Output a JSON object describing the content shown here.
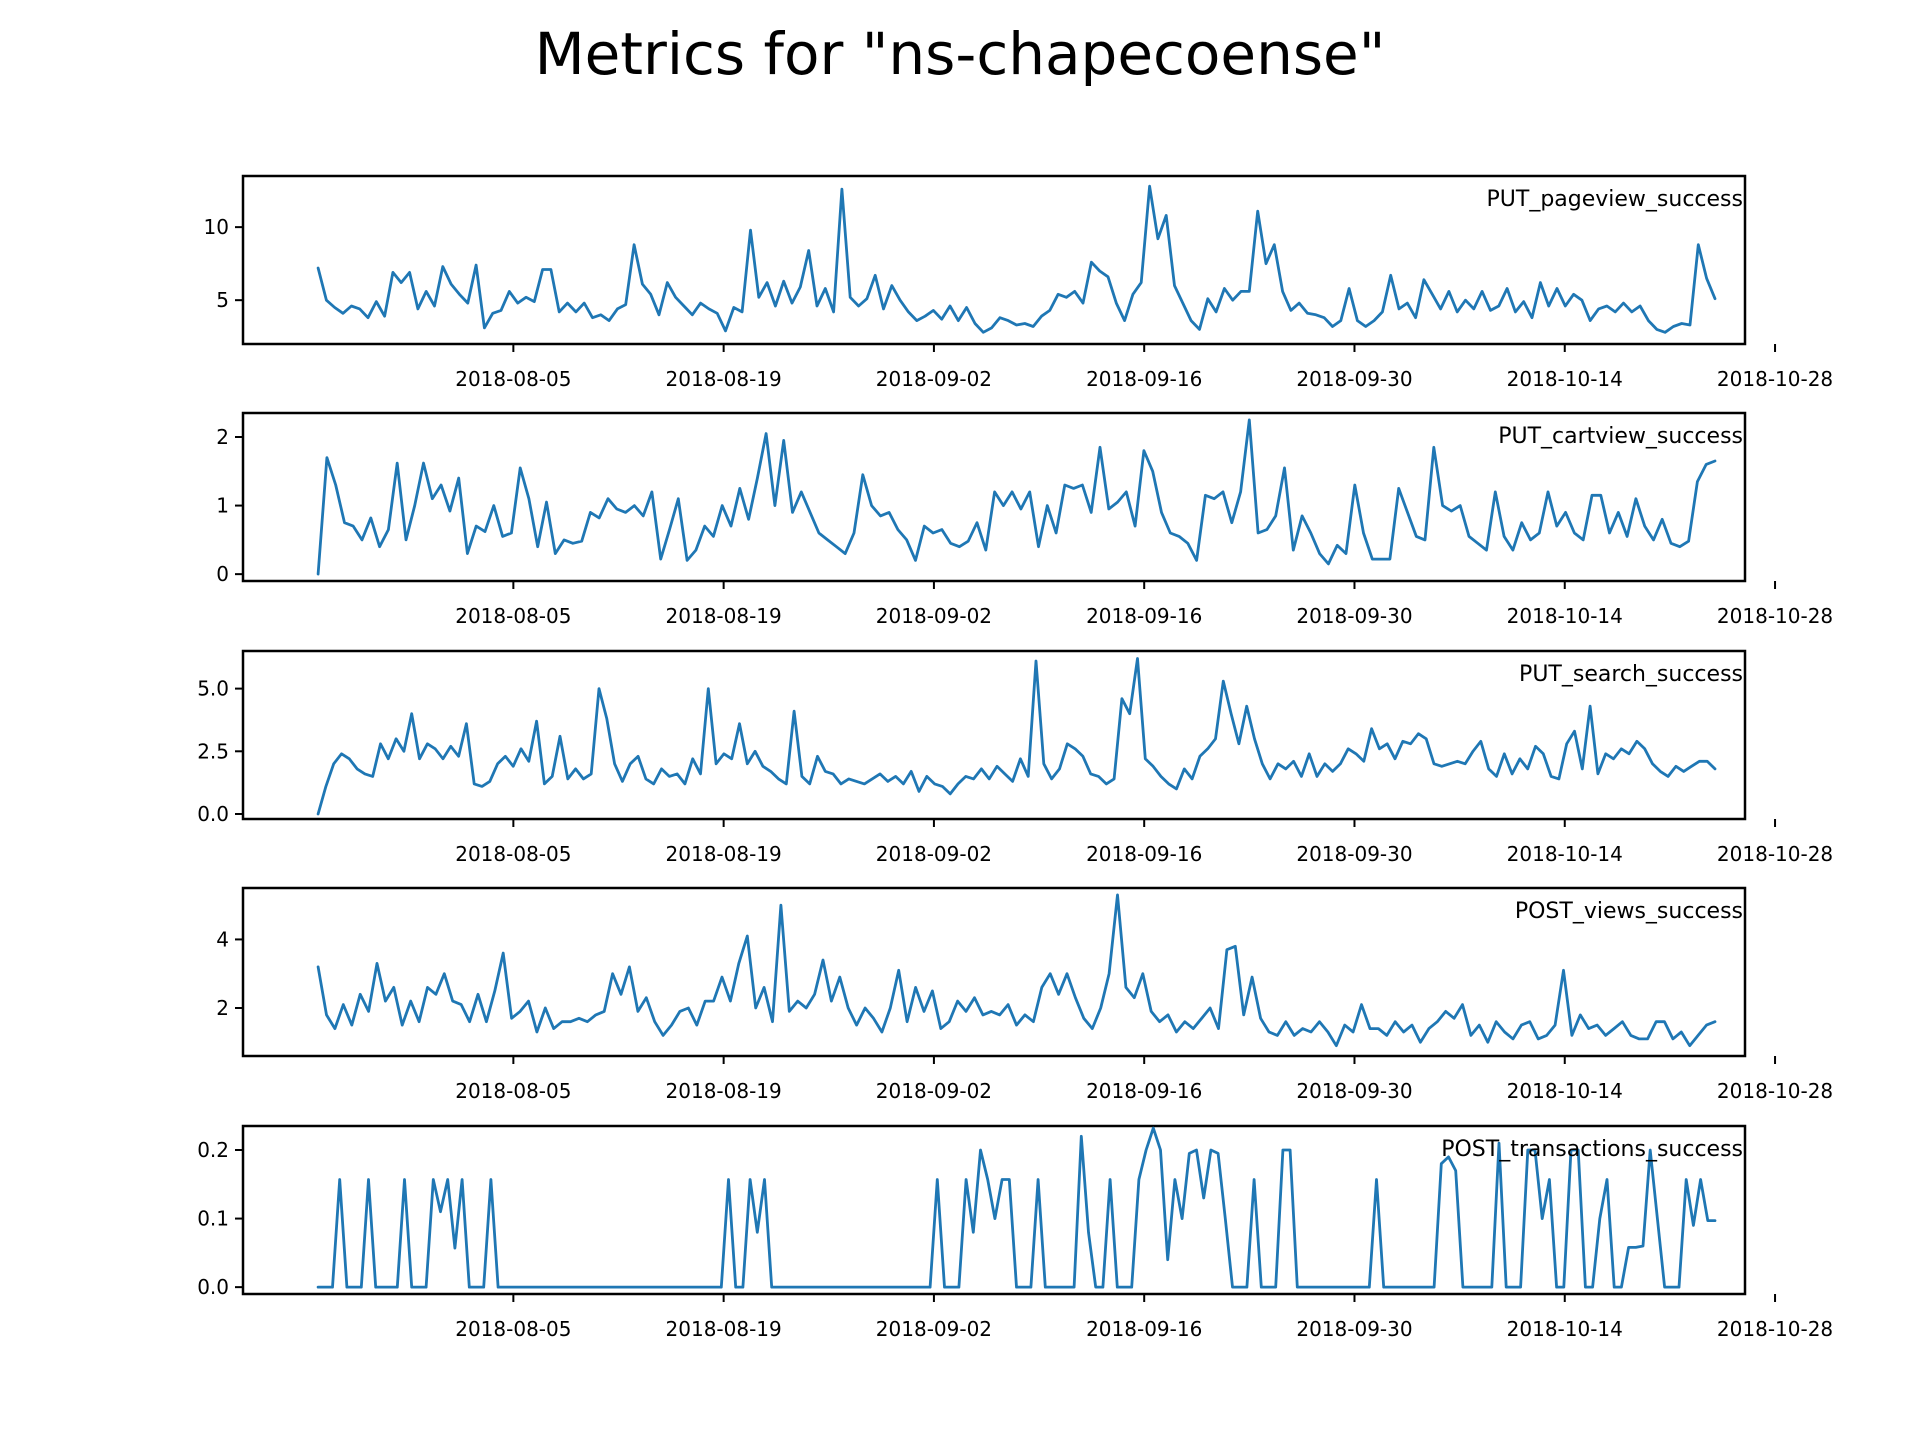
{
  "title": "Metrics for \"ns-chapecoense\"",
  "colors": {
    "line": "#1f77b4",
    "axes": "#000000",
    "background": "#ffffff"
  },
  "chart_data": [
    {
      "type": "line",
      "label": "PUT_pageview_success",
      "ylim": [
        2,
        13.5
      ],
      "yticks": [
        5,
        10
      ],
      "ytick_labels": [
        "5",
        "10"
      ],
      "x_start": "2018-07-23",
      "x_end": "2018-10-24",
      "xlim": [
        "2018-07-18",
        "2018-10-26"
      ],
      "xticks": [
        "2018-08-05",
        "2018-08-19",
        "2018-09-02",
        "2018-09-16",
        "2018-09-30",
        "2018-10-14",
        "2018-10-28"
      ],
      "values": [
        7.2,
        5,
        4.5,
        4.1,
        4.6,
        4.4,
        3.8,
        4.9,
        3.9,
        6.9,
        6.2,
        6.9,
        4.4,
        5.6,
        4.6,
        7.3,
        6.1,
        5.4,
        4.8,
        7.4,
        3.1,
        4.1,
        4.3,
        5.6,
        4.8,
        5.2,
        4.9,
        7.1,
        7.1,
        4.2,
        4.8,
        4.2,
        4.8,
        3.8,
        4.0,
        3.6,
        4.4,
        4.7,
        8.8,
        6.1,
        5.4,
        4.0,
        6.2,
        5.2,
        4.6,
        4.0,
        4.8,
        4.4,
        4.1,
        2.9,
        4.5,
        4.2,
        9.8,
        5.2,
        6.2,
        4.6,
        6.3,
        4.8,
        5.9,
        8.4,
        4.6,
        5.8,
        4.2,
        12.6,
        5.2,
        4.6,
        5.1,
        6.7,
        4.4,
        6.0,
        5.0,
        4.2,
        3.6,
        3.9,
        4.3,
        3.7,
        4.6,
        3.6,
        4.5,
        3.4,
        2.8,
        3.1,
        3.8,
        3.6,
        3.3,
        3.4,
        3.2,
        3.9,
        4.3,
        5.4,
        5.2,
        5.6,
        4.8,
        7.6,
        7.0,
        6.6,
        4.8,
        3.6,
        5.4,
        6.2,
        12.8,
        9.2,
        10.8,
        6.0,
        4.8,
        3.6,
        3.0,
        5.1,
        4.2,
        5.8,
        5.0,
        5.6,
        5.6,
        11.1,
        7.5,
        8.8,
        5.6,
        4.3,
        4.8,
        4.1,
        4.0,
        3.8,
        3.2,
        3.6,
        5.8,
        3.6,
        3.2,
        3.6,
        4.2,
        6.7,
        4.4,
        4.8,
        3.8,
        6.4,
        5.4,
        4.4,
        5.6,
        4.2,
        5.0,
        4.4,
        5.6,
        4.3,
        4.6,
        5.8,
        4.2,
        4.9,
        3.8,
        6.2,
        4.6,
        5.8,
        4.6,
        5.4,
        5.0,
        3.6,
        4.4,
        4.6,
        4.2,
        4.8,
        4.2,
        4.6,
        3.6,
        3.0,
        2.8,
        3.2,
        3.4,
        3.3,
        8.8,
        6.5,
        5.1
      ]
    },
    {
      "type": "line",
      "label": "PUT_cartview_success",
      "ylim": [
        -0.1,
        2.35
      ],
      "yticks": [
        0,
        1,
        2
      ],
      "ytick_labels": [
        "0",
        "1",
        "2"
      ],
      "x_start": "2018-07-23",
      "x_end": "2018-10-24",
      "xlim": [
        "2018-07-18",
        "2018-10-26"
      ],
      "xticks": [
        "2018-08-05",
        "2018-08-19",
        "2018-09-02",
        "2018-09-16",
        "2018-09-30",
        "2018-10-14",
        "2018-10-28"
      ],
      "values": [
        0.0,
        1.7,
        1.3,
        0.75,
        0.7,
        0.5,
        0.82,
        0.4,
        0.65,
        1.62,
        0.5,
        1.0,
        1.62,
        1.1,
        1.3,
        0.92,
        1.4,
        0.3,
        0.7,
        0.62,
        1.0,
        0.55,
        0.6,
        1.55,
        1.1,
        0.4,
        1.05,
        0.3,
        0.5,
        0.45,
        0.48,
        0.9,
        0.82,
        1.1,
        0.95,
        0.9,
        1.0,
        0.85,
        1.2,
        0.22,
        0.65,
        1.1,
        0.2,
        0.35,
        0.7,
        0.55,
        1.0,
        0.7,
        1.25,
        0.8,
        1.4,
        2.05,
        1.0,
        1.95,
        0.9,
        1.2,
        0.9,
        0.6,
        0.5,
        0.4,
        0.3,
        0.6,
        1.45,
        1.0,
        0.85,
        0.9,
        0.65,
        0.5,
        0.2,
        0.7,
        0.6,
        0.65,
        0.45,
        0.4,
        0.48,
        0.75,
        0.35,
        1.2,
        1.0,
        1.2,
        0.95,
        1.2,
        0.4,
        1.0,
        0.6,
        1.3,
        1.25,
        1.3,
        0.9,
        1.85,
        0.95,
        1.05,
        1.2,
        0.7,
        1.8,
        1.5,
        0.9,
        0.6,
        0.55,
        0.45,
        0.2,
        1.15,
        1.1,
        1.2,
        0.75,
        1.2,
        2.25,
        0.6,
        0.65,
        0.85,
        1.55,
        0.35,
        0.85,
        0.6,
        0.3,
        0.15,
        0.42,
        0.3,
        1.3,
        0.6,
        0.22,
        0.22,
        0.22,
        1.25,
        0.9,
        0.55,
        0.5,
        1.85,
        1.0,
        0.92,
        1.0,
        0.55,
        0.45,
        0.35,
        1.2,
        0.55,
        0.35,
        0.75,
        0.5,
        0.6,
        1.2,
        0.7,
        0.9,
        0.6,
        0.5,
        1.15,
        1.15,
        0.6,
        0.9,
        0.55,
        1.1,
        0.7,
        0.5,
        0.8,
        0.45,
        0.4,
        0.48,
        1.35,
        1.6,
        1.65
      ]
    },
    {
      "type": "line",
      "label": "PUT_search_success",
      "ylim": [
        -0.2,
        6.5
      ],
      "yticks": [
        0.0,
        2.5,
        5.0
      ],
      "ytick_labels": [
        "0.0",
        "2.5",
        "5.0"
      ],
      "x_start": "2018-07-23",
      "x_end": "2018-10-24",
      "xlim": [
        "2018-07-18",
        "2018-10-26"
      ],
      "xticks": [
        "2018-08-05",
        "2018-08-19",
        "2018-09-02",
        "2018-09-16",
        "2018-09-30",
        "2018-10-14",
        "2018-10-28"
      ],
      "values": [
        0.0,
        1.1,
        2.0,
        2.4,
        2.2,
        1.8,
        1.6,
        1.5,
        2.8,
        2.2,
        3.0,
        2.5,
        4.0,
        2.2,
        2.8,
        2.6,
        2.2,
        2.7,
        2.3,
        3.6,
        1.2,
        1.1,
        1.3,
        2.0,
        2.3,
        1.9,
        2.6,
        2.1,
        3.7,
        1.2,
        1.5,
        3.1,
        1.4,
        1.8,
        1.4,
        1.6,
        5.0,
        3.8,
        2.0,
        1.3,
        2.0,
        2.3,
        1.4,
        1.2,
        1.8,
        1.5,
        1.6,
        1.2,
        2.2,
        1.6,
        5.0,
        2.0,
        2.4,
        2.2,
        3.6,
        2.0,
        2.5,
        1.9,
        1.7,
        1.4,
        1.2,
        4.1,
        1.5,
        1.2,
        2.3,
        1.7,
        1.6,
        1.2,
        1.4,
        1.3,
        1.2,
        1.4,
        1.6,
        1.3,
        1.5,
        1.2,
        1.7,
        0.9,
        1.5,
        1.2,
        1.1,
        0.8,
        1.2,
        1.5,
        1.4,
        1.8,
        1.4,
        1.9,
        1.6,
        1.3,
        2.2,
        1.5,
        6.1,
        2.0,
        1.4,
        1.8,
        2.8,
        2.6,
        2.3,
        1.6,
        1.5,
        1.2,
        1.4,
        4.6,
        4.0,
        6.2,
        2.2,
        1.9,
        1.5,
        1.2,
        1.0,
        1.8,
        1.4,
        2.3,
        2.6,
        3.0,
        5.3,
        4.0,
        2.8,
        4.3,
        3.0,
        2.0,
        1.4,
        2.0,
        1.8,
        2.1,
        1.5,
        2.4,
        1.5,
        2.0,
        1.7,
        2.0,
        2.6,
        2.4,
        2.1,
        3.4,
        2.6,
        2.8,
        2.2,
        2.9,
        2.8,
        3.2,
        3.0,
        2.0,
        1.9,
        2.0,
        2.1,
        2.0,
        2.5,
        2.9,
        1.8,
        1.5,
        2.4,
        1.6,
        2.2,
        1.8,
        2.7,
        2.4,
        1.5,
        1.4,
        2.8,
        3.3,
        1.8,
        4.3,
        1.6,
        2.4,
        2.2,
        2.6,
        2.4,
        2.9,
        2.6,
        2.0,
        1.7,
        1.5,
        1.9,
        1.7,
        1.9,
        2.1,
        2.1,
        1.8
      ]
    },
    {
      "type": "line",
      "label": "POST_views_success",
      "ylim": [
        0.6,
        5.5
      ],
      "yticks": [
        2,
        4
      ],
      "ytick_labels": [
        "2",
        "4"
      ],
      "x_start": "2018-07-23",
      "x_end": "2018-10-24",
      "xlim": [
        "2018-07-18",
        "2018-10-26"
      ],
      "xticks": [
        "2018-08-05",
        "2018-08-19",
        "2018-09-02",
        "2018-09-16",
        "2018-09-30",
        "2018-10-14",
        "2018-10-28"
      ],
      "values": [
        3.2,
        1.8,
        1.4,
        2.1,
        1.5,
        2.4,
        1.9,
        3.3,
        2.2,
        2.6,
        1.5,
        2.2,
        1.6,
        2.6,
        2.4,
        3.0,
        2.2,
        2.1,
        1.6,
        2.4,
        1.6,
        2.5,
        3.6,
        1.7,
        1.9,
        2.2,
        1.3,
        2.0,
        1.4,
        1.6,
        1.6,
        1.7,
        1.6,
        1.8,
        1.9,
        3.0,
        2.4,
        3.2,
        1.9,
        2.3,
        1.6,
        1.2,
        1.5,
        1.9,
        2.0,
        1.5,
        2.2,
        2.2,
        2.9,
        2.2,
        3.3,
        4.1,
        2.0,
        2.6,
        1.6,
        5.0,
        1.9,
        2.2,
        2.0,
        2.4,
        3.4,
        2.2,
        2.9,
        2.0,
        1.5,
        2.0,
        1.7,
        1.3,
        2.0,
        3.1,
        1.6,
        2.6,
        1.9,
        2.5,
        1.4,
        1.6,
        2.2,
        1.9,
        2.3,
        1.8,
        1.9,
        1.8,
        2.1,
        1.5,
        1.8,
        1.6,
        2.6,
        3.0,
        2.4,
        3.0,
        2.3,
        1.7,
        1.4,
        2.0,
        3.0,
        5.3,
        2.6,
        2.3,
        3.0,
        1.9,
        1.6,
        1.8,
        1.3,
        1.6,
        1.4,
        1.7,
        2.0,
        1.4,
        3.7,
        3.8,
        1.8,
        2.9,
        1.7,
        1.3,
        1.2,
        1.6,
        1.2,
        1.4,
        1.3,
        1.6,
        1.3,
        0.9,
        1.5,
        1.3,
        2.1,
        1.4,
        1.4,
        1.2,
        1.6,
        1.3,
        1.5,
        1.0,
        1.4,
        1.6,
        1.9,
        1.7,
        2.1,
        1.2,
        1.5,
        1.0,
        1.6,
        1.3,
        1.1,
        1.5,
        1.6,
        1.1,
        1.2,
        1.5,
        3.1,
        1.2,
        1.8,
        1.4,
        1.5,
        1.2,
        1.4,
        1.6,
        1.2,
        1.1,
        1.1,
        1.6,
        1.6,
        1.1,
        1.3,
        0.9,
        1.2,
        1.5,
        1.6
      ]
    },
    {
      "type": "line",
      "label": "POST_transactions_success",
      "ylim": [
        -0.01,
        0.235
      ],
      "yticks": [
        0.0,
        0.1,
        0.2
      ],
      "ytick_labels": [
        "0.0",
        "0.1",
        "0.2"
      ],
      "x_start": "2018-07-23",
      "x_end": "2018-10-24",
      "xlim": [
        "2018-07-18",
        "2018-10-26"
      ],
      "xticks": [
        "2018-08-05",
        "2018-08-19",
        "2018-09-02",
        "2018-09-16",
        "2018-09-30",
        "2018-10-14",
        "2018-10-28"
      ],
      "values": [
        0,
        0,
        0,
        0.157,
        0,
        0,
        0,
        0.157,
        0,
        0,
        0,
        0,
        0.157,
        0,
        0,
        0,
        0.157,
        0.11,
        0.157,
        0.057,
        0.157,
        0,
        0,
        0,
        0.157,
        0,
        0,
        0,
        0,
        0,
        0,
        0,
        0,
        0,
        0,
        0,
        0,
        0,
        0,
        0,
        0,
        0,
        0,
        0,
        0,
        0,
        0,
        0,
        0,
        0,
        0,
        0,
        0,
        0,
        0,
        0,
        0,
        0.157,
        0,
        0,
        0.157,
        0.08,
        0.157,
        0,
        0,
        0,
        0,
        0,
        0,
        0,
        0,
        0,
        0,
        0,
        0,
        0,
        0,
        0,
        0,
        0,
        0,
        0,
        0,
        0,
        0,
        0,
        0.157,
        0,
        0,
        0,
        0.157,
        0.08,
        0.2,
        0.157,
        0.1,
        0.157,
        0.157,
        0,
        0,
        0,
        0.157,
        0,
        0,
        0,
        0,
        0,
        0.22,
        0.08,
        0,
        0,
        0.157,
        0,
        0,
        0,
        0.157,
        0.2,
        0.232,
        0.2,
        0.04,
        0.157,
        0.1,
        0.195,
        0.2,
        0.13,
        0.2,
        0.195,
        0.1,
        0,
        0,
        0,
        0.157,
        0,
        0,
        0,
        0.2,
        0.2,
        0,
        0,
        0,
        0,
        0,
        0,
        0,
        0,
        0,
        0,
        0,
        0.157,
        0,
        0,
        0,
        0,
        0,
        0,
        0,
        0,
        0.18,
        0.19,
        0.17,
        0,
        0,
        0,
        0,
        0,
        0.21,
        0,
        0,
        0,
        0.2,
        0.2,
        0.1,
        0.157,
        0,
        0,
        0.2,
        0.2,
        0,
        0,
        0.1,
        0.157,
        0,
        0,
        0.058,
        0.058,
        0.06,
        0.2,
        0.1,
        0,
        0,
        0,
        0.157,
        0.09,
        0.157,
        0.097,
        0.097
      ]
    }
  ]
}
